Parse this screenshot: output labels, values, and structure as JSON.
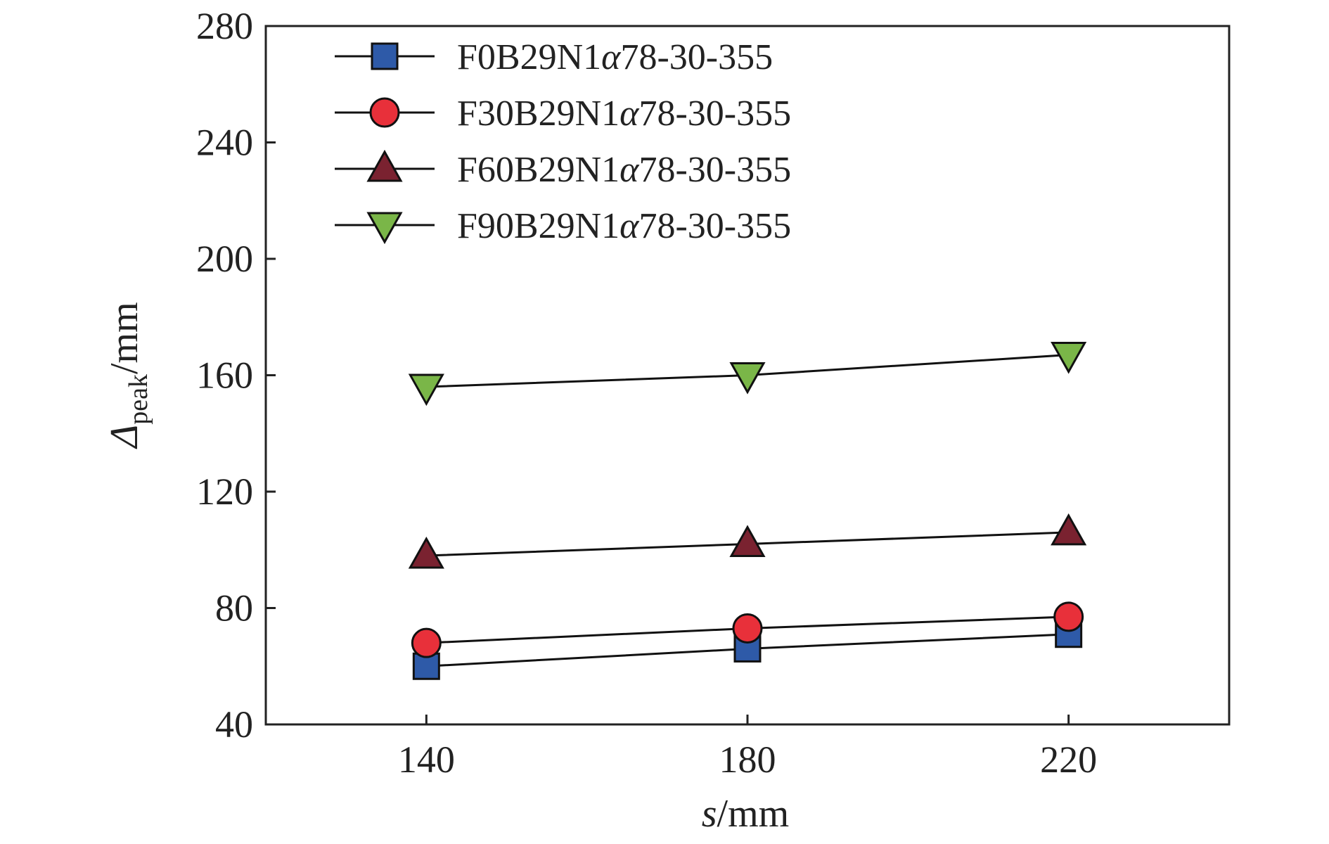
{
  "chart_data": {
    "type": "line",
    "xlabel_var": "s",
    "xlabel_unit": "/mm",
    "ylabel_var": "Δ",
    "ylabel_sub": "peak",
    "ylabel_unit": "/mm",
    "x": [
      140,
      180,
      220
    ],
    "xlim": [
      120,
      240
    ],
    "ylim": [
      40,
      280
    ],
    "xticks": [
      140,
      180,
      220
    ],
    "yticks": [
      40,
      80,
      120,
      160,
      200,
      240,
      280
    ],
    "legend_position": "top-left",
    "grid": false,
    "series": [
      {
        "name": "F0B29N1α78-30-355",
        "name_prefix": "F0B29N1",
        "name_greek": "α",
        "name_suffix": "78-30-355",
        "marker": "square",
        "color": "#2e5aa8",
        "values": [
          60,
          66,
          71
        ]
      },
      {
        "name": "F30B29N1α78-30-355",
        "name_prefix": "F30B29N1",
        "name_greek": "α",
        "name_suffix": "78-30-355",
        "marker": "circle",
        "color": "#e8303a",
        "values": [
          68,
          73,
          77
        ]
      },
      {
        "name": "F60B29N1α78-30-355",
        "name_prefix": "F60B29N1",
        "name_greek": "α",
        "name_suffix": "78-30-355",
        "marker": "triangle-up",
        "color": "#7a2230",
        "values": [
          98,
          102,
          106
        ]
      },
      {
        "name": "F90B29N1α78-30-355",
        "name_prefix": "F90B29N1",
        "name_greek": "α",
        "name_suffix": "78-30-355",
        "marker": "triangle-down",
        "color": "#7ab648",
        "values": [
          156,
          160,
          167
        ]
      }
    ]
  }
}
